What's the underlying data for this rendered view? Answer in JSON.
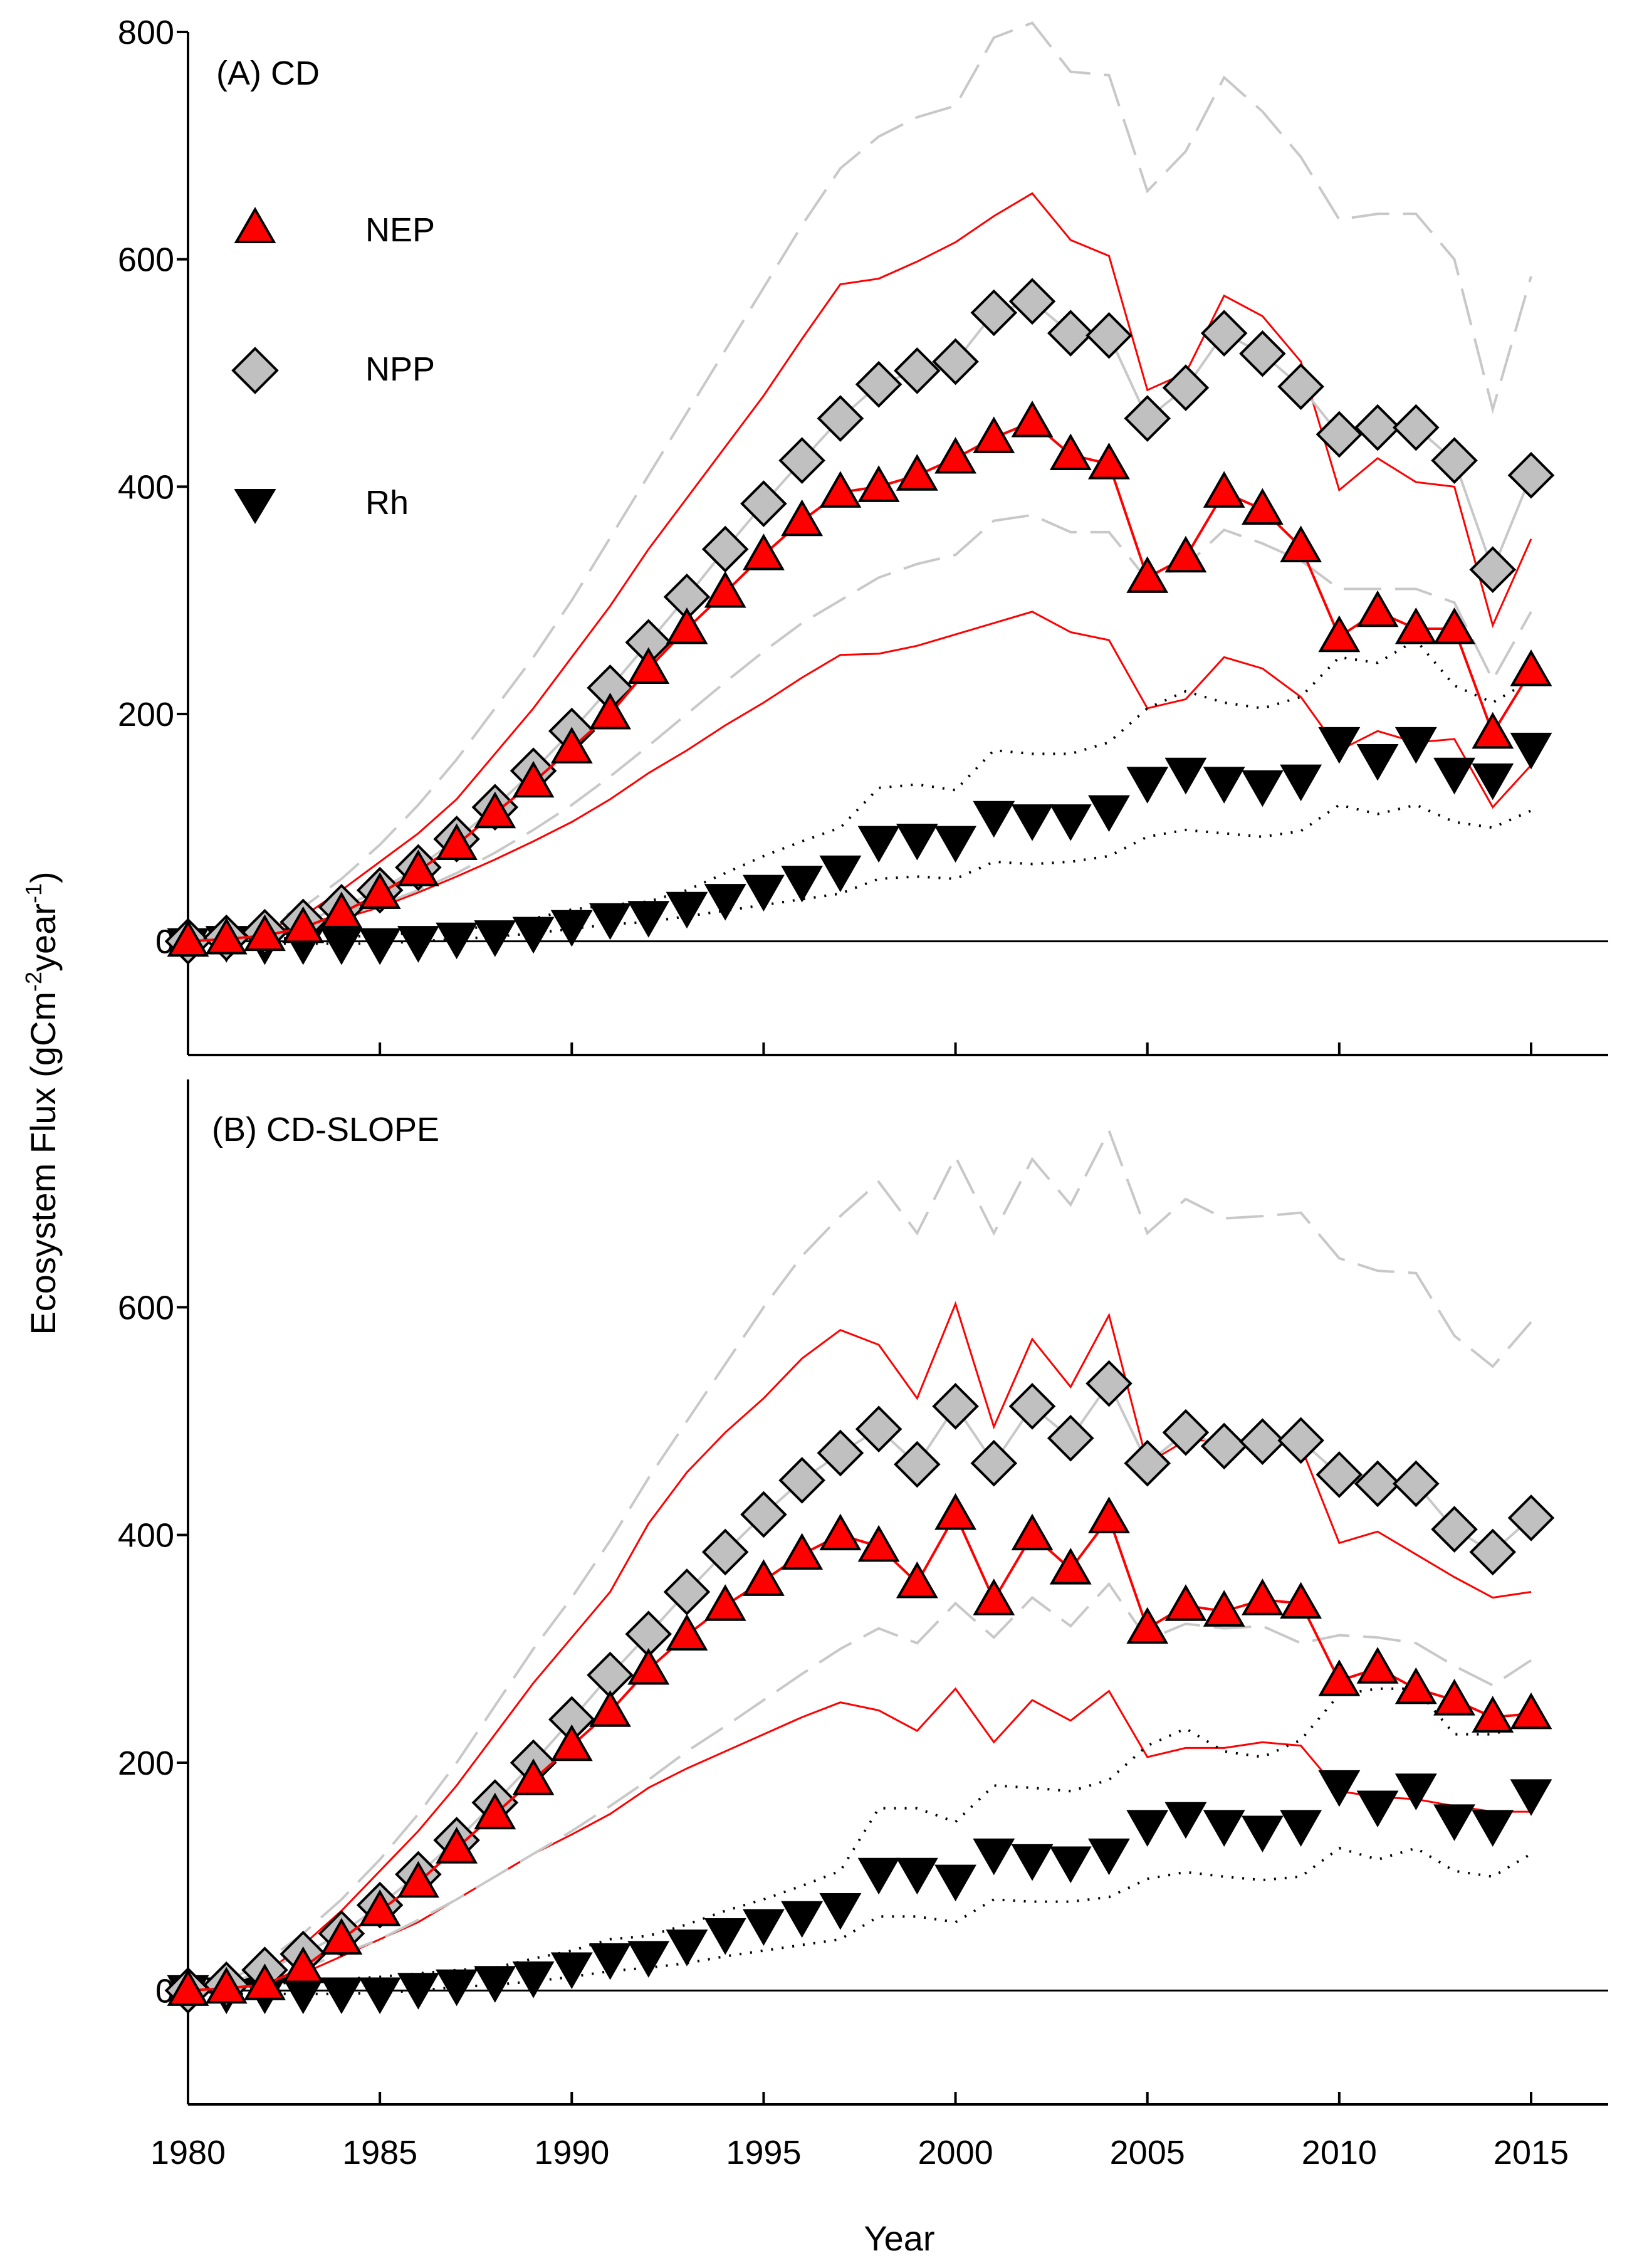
{
  "chart_data": {
    "type": "line",
    "xlabel": "Year",
    "ylabel": "Ecosystem Flux (gCm-2year-1)",
    "ylabel_parts": {
      "main": "Ecosystem Flux (gCm",
      "sup1": "-2",
      "mid": "year",
      "sup2": "-1",
      "end": ")"
    },
    "xlim": [
      1980,
      2017
    ],
    "x_ticks": [
      "1980",
      "1985",
      "1990",
      "1995",
      "2000",
      "2005",
      "2010",
      "2015"
    ],
    "legend": [
      {
        "name": "NEP",
        "marker": "triangle-up",
        "color": "#ff0000"
      },
      {
        "name": "NPP",
        "marker": "diamond",
        "color": "#c0c0c0"
      },
      {
        "name": "Rh",
        "marker": "triangle-down",
        "color": "#000000"
      }
    ],
    "legend_placement": "upper-left of panel A",
    "colors": {
      "nep": "#ff0000",
      "npp_fill": "#c0c0c0",
      "npp_band": "#c8c8c8",
      "rh": "#000000"
    },
    "x": [
      1980,
      1981,
      1982,
      1983,
      1984,
      1985,
      1986,
      1987,
      1988,
      1989,
      1990,
      1991,
      1992,
      1993,
      1994,
      1995,
      1996,
      1997,
      1998,
      1999,
      2000,
      2001,
      2002,
      2003,
      2004,
      2005,
      2006,
      2007,
      2008,
      2009,
      2010,
      2011,
      2012,
      2013,
      2014,
      2015
    ],
    "panels": [
      {
        "title": "(A) CD",
        "ylim": [
          -100,
          800
        ],
        "y_ticks": [
          "0",
          "200",
          "400",
          "600",
          "800"
        ],
        "series": [
          {
            "name": "NEP",
            "values": [
              0,
              2,
              5,
              12,
              25,
              42,
              62,
              85,
              113,
              140,
              170,
              200,
              240,
              275,
              307,
              340,
              370,
              395,
              400,
              410,
              425,
              443,
              457,
              428,
              420,
              320,
              338,
              395,
              380,
              347,
              268,
              290,
              275,
              275,
              183,
              238
            ],
            "upper": [
              0,
              3,
              10,
              22,
              45,
              70,
              95,
              125,
              165,
              205,
              250,
              295,
              345,
              390,
              435,
              480,
              530,
              578,
              583,
              598,
              615,
              638,
              658,
              617,
              603,
              485,
              500,
              568,
              550,
              510,
              397,
              425,
              404,
              400,
              278,
              354
            ],
            "lower": [
              0,
              1,
              4,
              10,
              20,
              30,
              43,
              57,
              72,
              88,
              105,
              125,
              148,
              168,
              190,
              210,
              232,
              252,
              253,
              260,
              270,
              280,
              290,
              272,
              265,
              205,
              213,
              250,
              240,
              215,
              168,
              185,
              175,
              178,
              118,
              155
            ]
          },
          {
            "name": "NPP",
            "values": [
              0,
              3,
              8,
              17,
              30,
              45,
              65,
              90,
              118,
              150,
              185,
              223,
              263,
              303,
              345,
              385,
              423,
              460,
              490,
              502,
              510,
              553,
              563,
              535,
              533,
              460,
              487,
              535,
              517,
              488,
              446,
              452,
              452,
              423,
              327,
              410
            ],
            "upper": [
              0,
              5,
              15,
              30,
              55,
              85,
              120,
              160,
              205,
              250,
              300,
              355,
              410,
              465,
              520,
              575,
              630,
              680,
              708,
              725,
              735,
              795,
              808,
              765,
              762,
              660,
              695,
              760,
              730,
              690,
              635,
              640,
              640,
              600,
              468,
              585
            ],
            "lower": [
              0,
              2,
              6,
              12,
              22,
              32,
              45,
              60,
              78,
              98,
              120,
              145,
              172,
              200,
              228,
              255,
              280,
              300,
              320,
              332,
              340,
              370,
              375,
              360,
              360,
              318,
              330,
              362,
              350,
              335,
              310,
              310,
              310,
              298,
              230,
              290
            ]
          },
          {
            "name": "Rh",
            "values": [
              -2,
              0,
              -2,
              -2,
              -2,
              -2,
              0,
              3,
              5,
              8,
              14,
              20,
              22,
              30,
              37,
              45,
              53,
              62,
              88,
              90,
              88,
              110,
              107,
              107,
              115,
              140,
              148,
              140,
              137,
              142,
              175,
              160,
              175,
              148,
              143,
              170
            ],
            "upper": [
              0,
              1,
              2,
              3,
              4,
              5,
              8,
              10,
              14,
              20,
              28,
              32,
              35,
              45,
              60,
              75,
              88,
              100,
              135,
              138,
              133,
              168,
              165,
              165,
              175,
              205,
              220,
              210,
              205,
              215,
              250,
              245,
              265,
              225,
              210,
              230
            ],
            "lower": [
              0,
              -2,
              -2,
              -2,
              -2,
              -2,
              0,
              2,
              4,
              7,
              11,
              15,
              17,
              22,
              27,
              32,
              37,
              42,
              55,
              57,
              55,
              70,
              68,
              70,
              75,
              92,
              98,
              95,
              92,
              97,
              120,
              112,
              120,
              105,
              100,
              115
            ]
          }
        ]
      },
      {
        "title": "(B) CD-SLOPE",
        "ylim": [
          -100,
          800
        ],
        "y_ticks": [
          "0",
          "200",
          "400",
          "600"
        ],
        "series": [
          {
            "name": "NEP",
            "values": [
              0,
              2,
              5,
              20,
              45,
              70,
              95,
              125,
              155,
              185,
              215,
              245,
              282,
              312,
              338,
              360,
              383,
              400,
              390,
              358,
              418,
              343,
              400,
              370,
              415,
              318,
              338,
              333,
              343,
              340,
              272,
              283,
              265,
              255,
              240,
              243
            ],
            "upper": [
              0,
              5,
              15,
              40,
              70,
              105,
              140,
              180,
              225,
              270,
              310,
              350,
              410,
              455,
              490,
              520,
              555,
              580,
              567,
              520,
              603,
              495,
              572,
              530,
              593,
              463,
              483,
              483,
              483,
              478,
              393,
              403,
              383,
              363,
              345,
              350
            ],
            "lower": [
              0,
              2,
              5,
              15,
              30,
              45,
              60,
              80,
              100,
              120,
              137,
              155,
              178,
              195,
              210,
              225,
              240,
              253,
              246,
              228,
              265,
              218,
              255,
              237,
              263,
              205,
              213,
              213,
              218,
              215,
              175,
              170,
              168,
              162,
              157,
              157
            ]
          },
          {
            "name": "NPP",
            "values": [
              0,
              5,
              18,
              32,
              50,
              75,
              102,
              132,
              165,
              200,
              238,
              277,
              313,
              350,
              385,
              418,
              448,
              472,
              493,
              462,
              513,
              463,
              513,
              485,
              533,
              463,
              490,
              478,
              482,
              483,
              453,
              445,
              445,
              405,
              385,
              415
            ],
            "upper": [
              0,
              8,
              25,
              50,
              80,
              115,
              155,
              200,
              250,
              300,
              345,
              395,
              450,
              500,
              550,
              600,
              645,
              680,
              710,
              665,
              732,
              665,
              730,
              690,
              755,
              665,
              695,
              678,
              680,
              683,
              643,
              632,
              630,
              575,
              548,
              587
            ],
            "lower": [
              0,
              3,
              10,
              20,
              32,
              45,
              62,
              80,
              100,
              120,
              140,
              162,
              185,
              210,
              232,
              255,
              278,
              300,
              318,
              305,
              340,
              310,
              345,
              320,
              357,
              308,
              322,
              318,
              320,
              305,
              312,
              310,
              305,
              285,
              268,
              290
            ]
          },
          {
            "name": "Rh",
            "values": [
              0,
              -2,
              -2,
              -2,
              -2,
              -2,
              2,
              5,
              8,
              12,
              20,
              28,
              30,
              40,
              50,
              58,
              65,
              72,
              103,
              103,
              97,
              120,
              115,
              113,
              120,
              145,
              152,
              145,
              140,
              145,
              180,
              162,
              177,
              150,
              145,
              172
            ],
            "upper": [
              0,
              2,
              5,
              8,
              10,
              12,
              15,
              18,
              20,
              28,
              35,
              45,
              48,
              58,
              70,
              80,
              92,
              105,
              160,
              160,
              148,
              180,
              178,
              175,
              185,
              215,
              230,
              210,
              205,
              220,
              260,
              265,
              265,
              225,
              225,
              235
            ],
            "lower": [
              0,
              -3,
              -3,
              -3,
              -3,
              -2,
              0,
              3,
              5,
              8,
              12,
              17,
              20,
              24,
              30,
              35,
              40,
              45,
              65,
              65,
              60,
              80,
              78,
              78,
              82,
              98,
              104,
              100,
              97,
              100,
              125,
              115,
              125,
              105,
              100,
              120
            ]
          }
        ]
      }
    ]
  }
}
